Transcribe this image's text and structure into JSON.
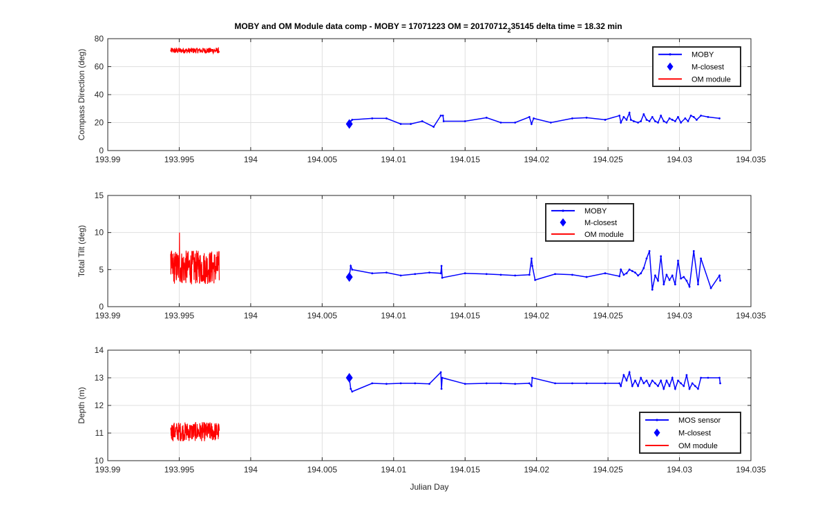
{
  "figure": {
    "title_main": "MOBY and OM Module data comp - MOBY = 17071223 OM = 20170712",
    "title_sub": "2",
    "title_rest": "35145 delta time = 18.32 min"
  },
  "chart_data": [
    {
      "type": "line",
      "name": "compass",
      "xlabel": "",
      "ylabel": "Compass Direction (deg)",
      "xlim": [
        193.99,
        194.035
      ],
      "ylim": [
        0,
        80
      ],
      "xticks": [
        193.99,
        193.995,
        194,
        194.005,
        194.01,
        194.015,
        194.02,
        194.025,
        194.03,
        194.035
      ],
      "xtick_labels": [
        "193.99",
        "193.995",
        "194",
        "194.005",
        "194.01",
        "194.015",
        "194.02",
        "194.025",
        "194.03",
        "194.035"
      ],
      "yticks": [
        0,
        20,
        40,
        60,
        80
      ],
      "ytick_labels": [
        "0",
        "20",
        "40",
        "60",
        "80"
      ],
      "grid": true,
      "legend_position": "top-right",
      "legend": [
        "MOBY",
        "M-closest",
        "OM module"
      ],
      "series": [
        {
          "name": "MOBY",
          "color": "#0000ff",
          "x": [
            194.0069,
            194.007,
            194.0071,
            194.0085,
            194.0095,
            194.0105,
            194.0112,
            194.012,
            194.0128,
            194.0133,
            194.01345,
            194.0135,
            194.015,
            194.0165,
            194.0175,
            194.0185,
            194.0195,
            194.01965,
            194.0198,
            194.021,
            194.0225,
            194.0235,
            194.0248,
            194.0258,
            194.0259,
            194.0261,
            194.0263,
            194.0265,
            194.0266,
            194.0268,
            194.0271,
            194.0273,
            194.0275,
            194.0277,
            194.0279,
            194.0281,
            194.0283,
            194.0285,
            194.0287,
            194.0289,
            194.0291,
            194.0293,
            194.0295,
            194.0297,
            194.0299,
            194.0301,
            194.0304,
            194.0306,
            194.0308,
            194.031,
            194.0312,
            194.0315,
            194.032,
            194.0328
          ],
          "y": [
            19,
            21,
            22,
            23,
            23,
            19,
            19,
            21,
            17,
            25,
            25,
            21,
            21,
            23.5,
            20,
            20,
            24,
            19,
            23,
            20,
            23,
            23.5,
            22,
            25,
            20,
            24,
            22,
            27,
            22,
            21,
            20,
            21,
            26,
            22,
            21,
            24,
            21,
            20,
            25,
            21,
            20,
            23,
            22,
            21,
            24,
            20,
            23,
            21,
            25,
            24,
            22,
            25,
            24,
            23
          ]
        },
        {
          "name": "M-closest",
          "color": "#0000ff",
          "x": [
            194.0069
          ],
          "y": [
            19
          ]
        },
        {
          "name": "OM module",
          "color": "#ff0000",
          "x_range": [
            193.9944,
            193.9978
          ],
          "y_center": 71.5,
          "y_amplitude": 2
        }
      ]
    },
    {
      "type": "line",
      "name": "tilt",
      "xlabel": "",
      "ylabel": "Total Tilt (deg)",
      "xlim": [
        193.99,
        194.035
      ],
      "ylim": [
        0,
        15
      ],
      "xticks": [
        193.99,
        193.995,
        194,
        194.005,
        194.01,
        194.015,
        194.02,
        194.025,
        194.03,
        194.035
      ],
      "xtick_labels": [
        "193.99",
        "193.995",
        "194",
        "194.005",
        "194.01",
        "194.015",
        "194.02",
        "194.025",
        "194.03",
        "194.035"
      ],
      "yticks": [
        0,
        5,
        10,
        15
      ],
      "ytick_labels": [
        "0",
        "5",
        "10",
        "15"
      ],
      "grid": true,
      "legend_position": "top-center",
      "legend": [
        "MOBY",
        "M-closest",
        "OM module"
      ],
      "series": [
        {
          "name": "MOBY",
          "color": "#0000ff",
          "x": [
            194.0069,
            194.007,
            194.0071,
            194.0085,
            194.0095,
            194.0105,
            194.0115,
            194.0125,
            194.0133,
            194.01335,
            194.0134,
            194.015,
            194.0165,
            194.0175,
            194.0185,
            194.0195,
            194.01965,
            194.0197,
            194.0199,
            194.0213,
            194.0225,
            194.0235,
            194.0248,
            194.0258,
            194.0259,
            194.0261,
            194.0263,
            194.0265,
            194.0267,
            194.0269,
            194.0271,
            194.0273,
            194.0275,
            194.0277,
            194.0279,
            194.0281,
            194.0283,
            194.0285,
            194.0287,
            194.0289,
            194.0291,
            194.0293,
            194.0295,
            194.0297,
            194.0299,
            194.0301,
            194.0303,
            194.0305,
            194.0307,
            194.031,
            194.0313,
            194.0315,
            194.0322,
            194.0328,
            194.03285
          ],
          "y": [
            4,
            5.5,
            5,
            4.5,
            4.6,
            4.2,
            4.4,
            4.6,
            4.5,
            5.5,
            3.9,
            4.5,
            4.4,
            4.3,
            4.2,
            4.3,
            6.5,
            5.5,
            3.6,
            4.4,
            4.3,
            4.0,
            4.5,
            4.1,
            5.0,
            4.3,
            4.5,
            5.0,
            4.8,
            4.6,
            4.2,
            4.5,
            5.2,
            6.5,
            7.5,
            2.3,
            4.2,
            3.5,
            6.8,
            3.0,
            4.3,
            3.6,
            4.2,
            3.0,
            6.2,
            3.8,
            4.0,
            3.5,
            2.7,
            7.5,
            3.0,
            6.5,
            2.5,
            4.2,
            3.5
          ]
        },
        {
          "name": "M-closest",
          "color": "#0000ff",
          "x": [
            194.0069
          ],
          "y": [
            4
          ]
        },
        {
          "name": "OM module",
          "color": "#ff0000",
          "x_range": [
            193.9944,
            193.9978
          ],
          "y_center": 5.3,
          "y_amplitude": 2.3,
          "y_peak": 10
        }
      ]
    },
    {
      "type": "line",
      "name": "depth",
      "xlabel": "Julian Day",
      "ylabel": "Depth (m)",
      "xlim": [
        193.99,
        194.035
      ],
      "ylim": [
        10,
        14
      ],
      "xticks": [
        193.99,
        193.995,
        194,
        194.005,
        194.01,
        194.015,
        194.02,
        194.025,
        194.03,
        194.035
      ],
      "xtick_labels": [
        "193.99",
        "193.995",
        "194",
        "194.005",
        "194.01",
        "194.015",
        "194.02",
        "194.025",
        "194.03",
        "194.035"
      ],
      "yticks": [
        10,
        11,
        12,
        13,
        14
      ],
      "ytick_labels": [
        "10",
        "11",
        "12",
        "13",
        "14"
      ],
      "grid": true,
      "legend_position": "bottom-right",
      "legend": [
        "MOS sensor",
        "M-closest",
        "OM module"
      ],
      "series": [
        {
          "name": "MOS sensor",
          "color": "#0000ff",
          "x": [
            194.0069,
            194.007,
            194.0071,
            194.0085,
            194.0095,
            194.0105,
            194.0115,
            194.0125,
            194.0133,
            194.01335,
            194.0134,
            194.015,
            194.0165,
            194.0175,
            194.0185,
            194.0195,
            194.01965,
            194.0197,
            194.0213,
            194.0225,
            194.0235,
            194.0248,
            194.0258,
            194.0259,
            194.0261,
            194.0263,
            194.0265,
            194.0267,
            194.0269,
            194.0271,
            194.0273,
            194.0275,
            194.0277,
            194.0279,
            194.0281,
            194.0283,
            194.0285,
            194.0287,
            194.0289,
            194.0291,
            194.0293,
            194.0295,
            194.0297,
            194.0299,
            194.0301,
            194.0303,
            194.0305,
            194.0307,
            194.0309,
            194.0311,
            194.0313,
            194.0315,
            194.032,
            194.0328,
            194.03285
          ],
          "y": [
            13,
            12.6,
            12.5,
            12.8,
            12.78,
            12.8,
            12.8,
            12.78,
            13.2,
            12.6,
            13.0,
            12.78,
            12.8,
            12.8,
            12.78,
            12.8,
            12.7,
            13.0,
            12.8,
            12.8,
            12.8,
            12.8,
            12.8,
            12.7,
            13.1,
            12.9,
            13.2,
            12.7,
            12.9,
            12.7,
            13.0,
            12.8,
            12.9,
            12.7,
            12.9,
            12.8,
            12.7,
            12.9,
            12.6,
            12.9,
            12.7,
            13.0,
            12.6,
            12.9,
            12.8,
            12.7,
            13.1,
            12.6,
            12.8,
            12.7,
            12.6,
            13.0,
            13.0,
            13.0,
            12.8
          ]
        },
        {
          "name": "M-closest",
          "color": "#0000ff",
          "x": [
            194.0069
          ],
          "y": [
            13
          ]
        },
        {
          "name": "OM module",
          "color": "#ff0000",
          "x_range": [
            193.9944,
            193.9978
          ],
          "y_center": 11.05,
          "y_amplitude": 0.35
        }
      ]
    }
  ]
}
